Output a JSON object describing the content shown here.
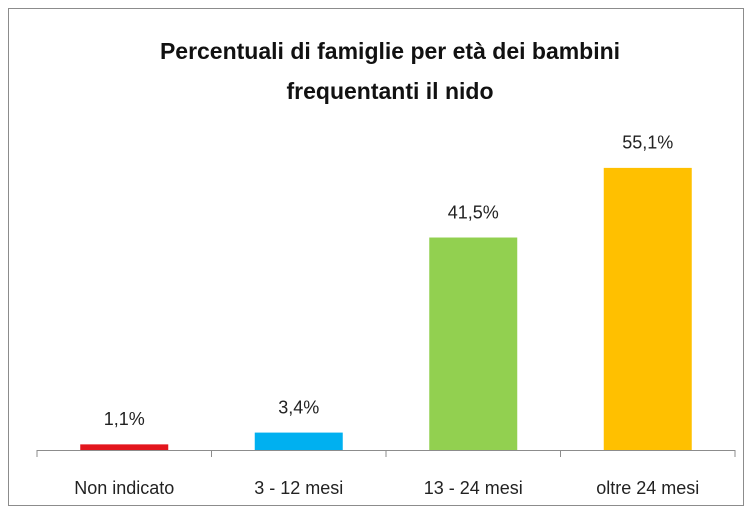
{
  "chart_data": {
    "type": "bar",
    "title": [
      "Percentuali di famiglie per età dei bambini",
      "frequentanti il nido"
    ],
    "categories": [
      "Non indicato",
      "3 - 12 mesi",
      "13 - 24 mesi",
      "oltre 24 mesi"
    ],
    "values": [
      1.1,
      3.4,
      41.5,
      55.1
    ],
    "value_labels": [
      "1,1%",
      "3,4%",
      "41,5%",
      "55,1%"
    ],
    "colors": [
      "#e3161d",
      "#00b0f0",
      "#92d050",
      "#ffc000"
    ]
  }
}
